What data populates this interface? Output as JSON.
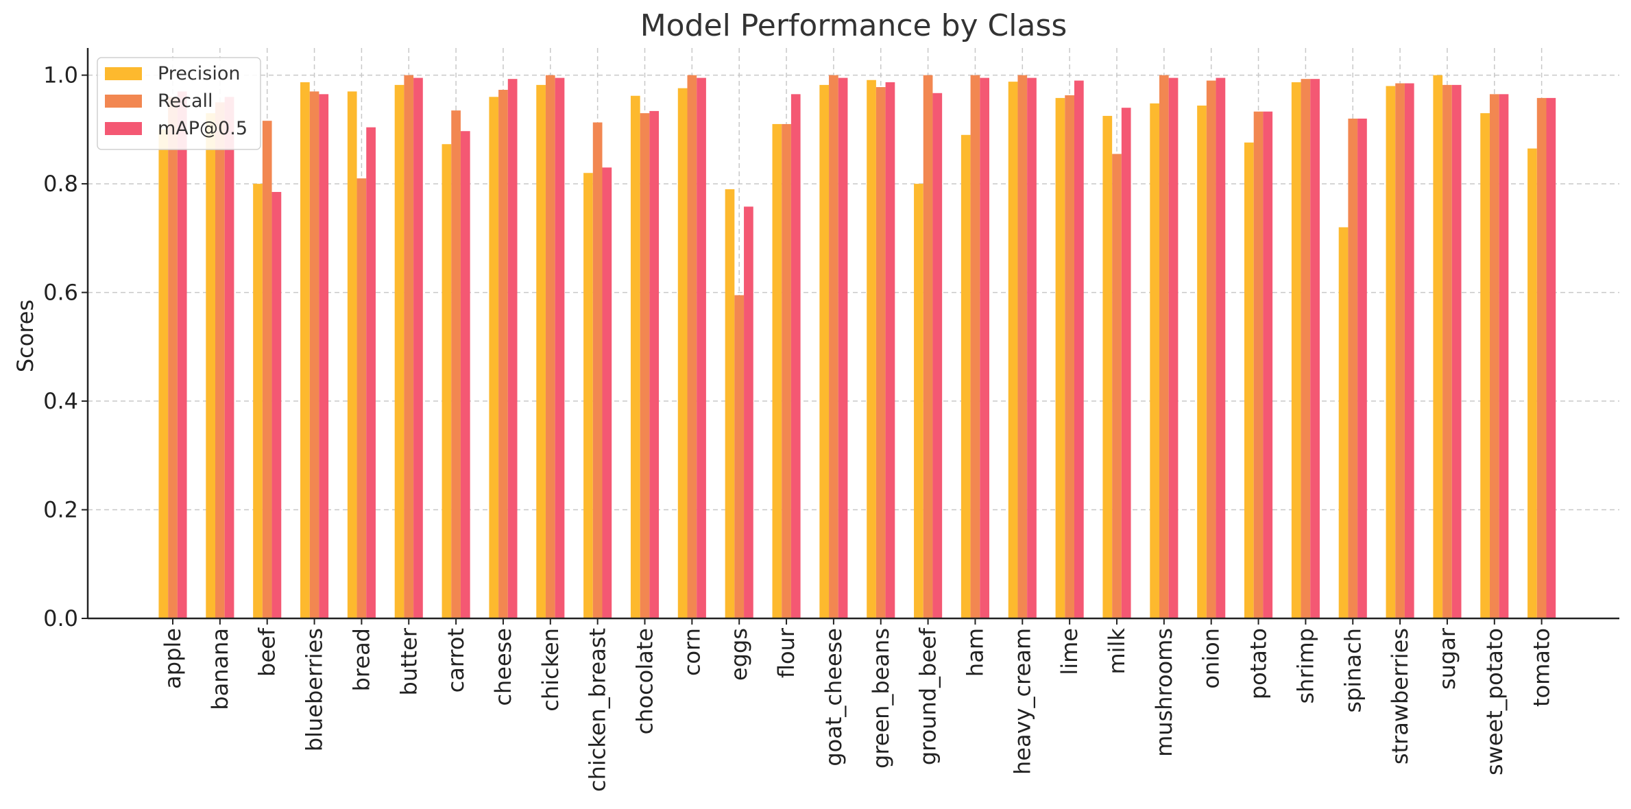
{
  "chart_data": {
    "type": "bar",
    "title": "Model Performance by Class",
    "xlabel": "",
    "ylabel": "Scores",
    "ylim": [
      0,
      1.05
    ],
    "yticks": [
      0.0,
      0.2,
      0.4,
      0.6,
      0.8,
      1.0
    ],
    "ytick_labels": [
      "0.0",
      "0.2",
      "0.4",
      "0.6",
      "0.8",
      "1.0"
    ],
    "grid": true,
    "legend_position": "top-left",
    "categories": [
      "apple",
      "banana",
      "beef",
      "blueberries",
      "bread",
      "butter",
      "carrot",
      "cheese",
      "chicken",
      "chicken_breast",
      "chocolate",
      "corn",
      "eggs",
      "flour",
      "goat_cheese",
      "green_beans",
      "ground_beef",
      "ham",
      "heavy_cream",
      "lime",
      "milk",
      "mushrooms",
      "onion",
      "potato",
      "shrimp",
      "spinach",
      "strawberries",
      "sugar",
      "sweet_potato",
      "tomato"
    ],
    "series": [
      {
        "name": "Precision",
        "color": "#FDB92E",
        "values": [
          0.9,
          0.93,
          0.8,
          0.987,
          0.97,
          0.982,
          0.873,
          0.96,
          0.982,
          0.82,
          0.962,
          0.976,
          0.79,
          0.91,
          0.982,
          0.991,
          0.8,
          0.89,
          0.988,
          0.958,
          0.925,
          0.948,
          0.944,
          0.876,
          0.987,
          0.72,
          0.98,
          1.0,
          0.93,
          0.865
        ]
      },
      {
        "name": "Recall",
        "color": "#F28751",
        "values": [
          0.96,
          0.95,
          0.916,
          0.97,
          0.81,
          1.0,
          0.935,
          0.973,
          1.0,
          0.913,
          0.93,
          1.0,
          0.595,
          0.91,
          1.0,
          0.978,
          1.0,
          1.0,
          1.0,
          0.963,
          0.855,
          1.0,
          0.99,
          0.933,
          0.993,
          0.92,
          0.985,
          0.982,
          0.965,
          0.958
        ]
      },
      {
        "name": "mAP@0.5",
        "color": "#F45873",
        "values": [
          0.97,
          0.96,
          0.785,
          0.965,
          0.904,
          0.995,
          0.897,
          0.993,
          0.995,
          0.83,
          0.934,
          0.995,
          0.758,
          0.965,
          0.995,
          0.987,
          0.967,
          0.995,
          0.995,
          0.99,
          0.94,
          0.995,
          0.995,
          0.933,
          0.993,
          0.92,
          0.985,
          0.982,
          0.965,
          0.958
        ]
      }
    ]
  }
}
